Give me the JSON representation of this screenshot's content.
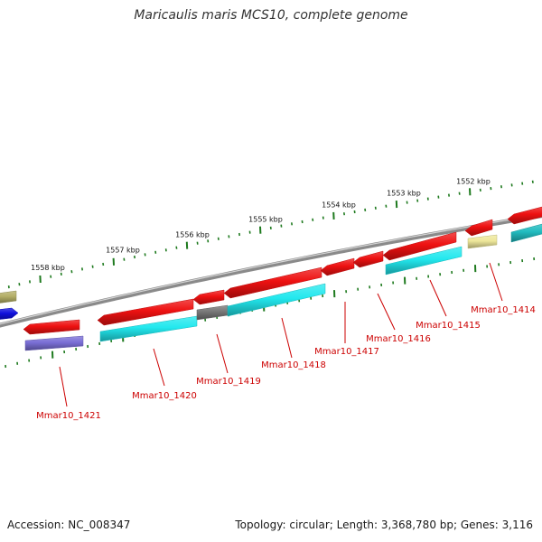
{
  "title": "Maricaulis maris MCS10, complete genome",
  "footer": {
    "accession": "Accession: NC_008347",
    "summary": "Topology: circular; Length: 3,368,780 bp; Genes: 3,116"
  },
  "colors": {
    "backbone": "#8a8a8a",
    "ticks": "#1e7a1e",
    "label": "#cc0000",
    "cds_forward": "#ee1111",
    "rna_cyan": "#22e8ee",
    "grey": "#777777",
    "olive": "#b3ae66",
    "pale_yellow": "#eee79a",
    "blue": "#1010dd",
    "purple": "#7a6fd6",
    "teal": "#22bcc0"
  },
  "scale_labels": [
    "1558 kbp",
    "1557 kbp",
    "1556 kbp",
    "1555 kbp",
    "1554 kbp",
    "1553 kbp",
    "1552 kbp"
  ],
  "gene_labels": [
    "Mmar10_1421",
    "Mmar10_1420",
    "Mmar10_1419",
    "Mmar10_1418",
    "Mmar10_1417",
    "Mmar10_1416",
    "Mmar10_1415",
    "Mmar10_1414"
  ]
}
